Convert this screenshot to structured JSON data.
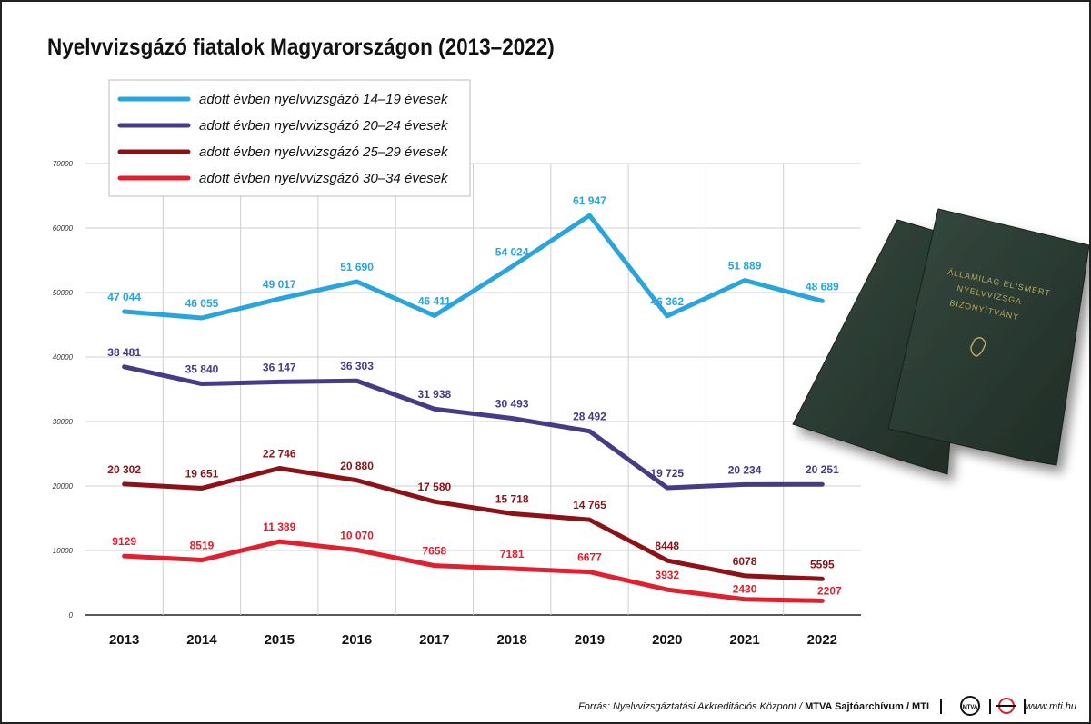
{
  "title": "Nyelvvizsgázó fiatalok Magyarországon (2013–2022)",
  "footer": {
    "source_prefix": "Forrás: Nyelvvizsgáztatási Akkreditációs Központ / ",
    "source_bold": "MTVA Sajtóarchívum / MTI",
    "logo_mtva": "MTVA",
    "website": "www.mti.hu"
  },
  "photo": {
    "description_icon": "language-certificate-booklets-icon",
    "cover_text": [
      "ÁLLAMILAG ELISMERT",
      "NYELVVIZSGA",
      "BIZONYÍTVÁNY"
    ],
    "cover_color": "#2c3b33"
  },
  "chart_data": {
    "type": "line",
    "x": [
      "2013",
      "2014",
      "2015",
      "2016",
      "2017",
      "2018",
      "2019",
      "2020",
      "2021",
      "2022"
    ],
    "ylim": [
      0,
      70000
    ],
    "yticks": [
      "0",
      "10000",
      "20000",
      "30000",
      "40000",
      "50000",
      "60000",
      "70000"
    ],
    "grid": true,
    "legend_position": "top-left",
    "series": [
      {
        "name": "adott évben nyelvvizsgázó 14–19 évesek",
        "color": "#2aa4dc",
        "values": [
          47044,
          46055,
          49017,
          51690,
          46411,
          54024,
          61947,
          46362,
          51889,
          48689
        ],
        "labels": [
          "47 044",
          "46 055",
          "49 017",
          "51 690",
          "46 411",
          "54 024",
          "61 947",
          "46 362",
          "51 889",
          "48 689"
        ]
      },
      {
        "name": "adott évben nyelvvizsgázó 20–24 évesek",
        "color": "#453b86",
        "values": [
          38481,
          35840,
          36147,
          36303,
          31938,
          30493,
          28492,
          19725,
          20234,
          20251
        ],
        "labels": [
          "38 481",
          "35 840",
          "36 147",
          "36 303",
          "31 938",
          "30 493",
          "28 492",
          "19 725",
          "20 234",
          "20 251"
        ]
      },
      {
        "name": "adott évben nyelvvizsgázó 25–29 évesek",
        "color": "#8d1218",
        "values": [
          20302,
          19651,
          22746,
          20880,
          17580,
          15718,
          14765,
          8448,
          6078,
          5595
        ],
        "labels": [
          "20 302",
          "19 651",
          "22 746",
          "20 880",
          "17 580",
          "15 718",
          "14 765",
          "8448",
          "6078",
          "5595"
        ]
      },
      {
        "name": "adott évben nyelvvizsgázó 30–34 évesek",
        "color": "#e0202e",
        "values": [
          9129,
          8519,
          11389,
          10070,
          7658,
          7181,
          6677,
          3932,
          2430,
          2207
        ],
        "labels": [
          "9129",
          "8519",
          "11 389",
          "10 070",
          "7658",
          "7181",
          "6677",
          "3932",
          "2430",
          "2207"
        ]
      }
    ]
  }
}
